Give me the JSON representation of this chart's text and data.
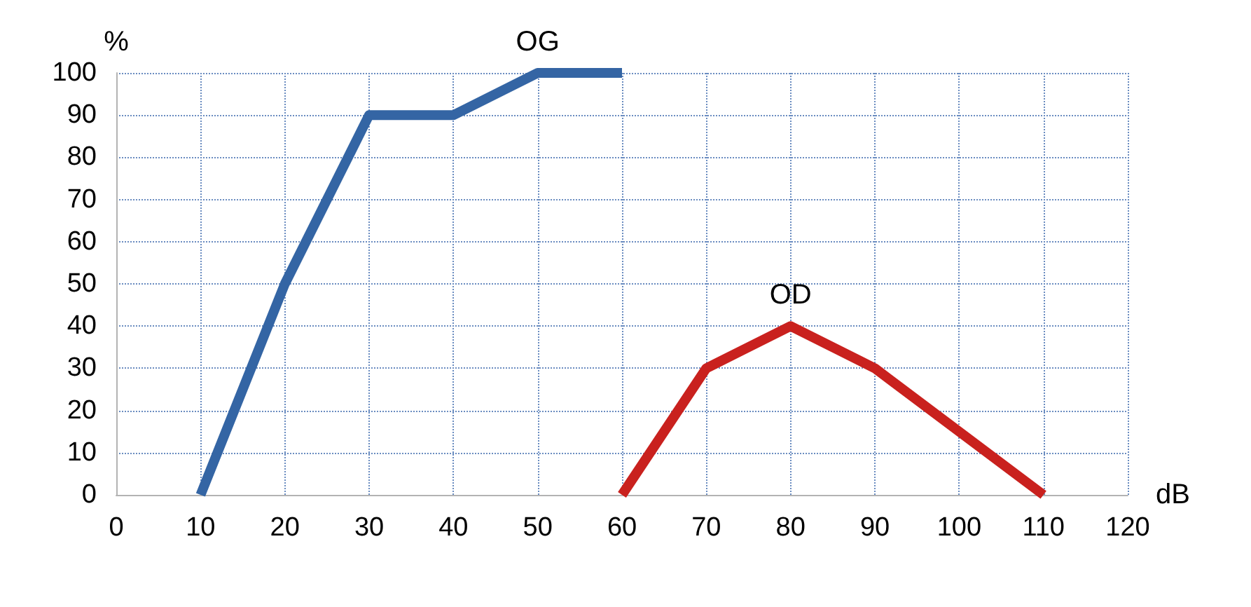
{
  "chart_data": {
    "type": "line",
    "xlabel": "dB",
    "ylabel": "%",
    "xlim": [
      0,
      120
    ],
    "xticks": [
      0,
      10,
      20,
      30,
      40,
      50,
      60,
      70,
      80,
      90,
      100,
      110,
      120
    ],
    "ylim": [
      0,
      100
    ],
    "yticks": [
      0,
      10,
      20,
      30,
      40,
      50,
      60,
      70,
      80,
      90,
      100
    ],
    "grid": true,
    "legend": false,
    "marker": "none",
    "line_style": "solid",
    "series": [
      {
        "name": "OG",
        "color": "#3465a4",
        "x": [
          10,
          20,
          30,
          40,
          50,
          60
        ],
        "values": [
          0,
          50,
          90,
          90,
          100,
          100
        ]
      },
      {
        "name": "OD",
        "color": "#c9211e",
        "x": [
          60,
          70,
          80,
          90,
          110
        ],
        "values": [
          0,
          30,
          40,
          30,
          0
        ]
      }
    ]
  }
}
